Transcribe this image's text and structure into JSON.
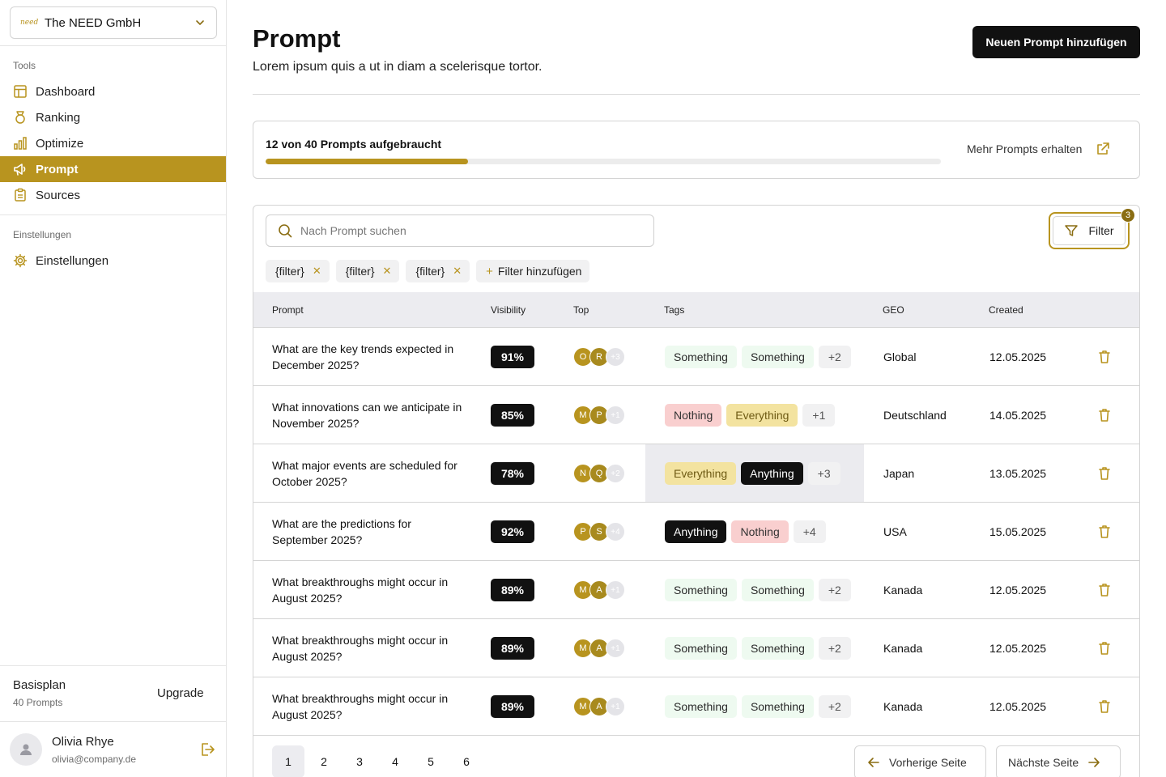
{
  "org": {
    "logo": "need",
    "name": "The NEED GmbH"
  },
  "sidebar": {
    "section_tools": "Tools",
    "items": [
      {
        "label": "Dashboard",
        "icon": "layout-icon"
      },
      {
        "label": "Ranking",
        "icon": "medal-icon"
      },
      {
        "label": "Optimize",
        "icon": "bar-chart-icon"
      },
      {
        "label": "Prompt",
        "icon": "megaphone-icon",
        "active": true
      },
      {
        "label": "Sources",
        "icon": "clipboard-icon"
      }
    ],
    "section_settings": "Einstellungen",
    "settings_item": {
      "label": "Einstellungen",
      "icon": "gear-icon"
    },
    "plan": {
      "name": "Basisplan",
      "sub": "40 Prompts",
      "upgrade_label": "Upgrade"
    },
    "user": {
      "name": "Olivia Rhye",
      "email": "olivia@company.de"
    }
  },
  "header": {
    "title": "Prompt",
    "subtitle": "Lorem ipsum quis a ut in diam a scelerisque tortor.",
    "add_button": "Neuen Prompt hinzufügen"
  },
  "usage": {
    "label": "12 von 40 Prompts aufgebraucht",
    "used": 12,
    "total": 40,
    "link_label": "Mehr Prompts erhalten"
  },
  "toolbar": {
    "search_placeholder": "Nach Prompt suchen",
    "filter_label": "Filter",
    "filter_count": "3",
    "chips": [
      "{filter}",
      "{filter}",
      "{filter}"
    ],
    "add_filter_label": "Filter hinzufügen"
  },
  "table": {
    "columns": [
      "Prompt",
      "Visibility",
      "Top",
      "Tags",
      "GEO",
      "Created"
    ],
    "rows": [
      {
        "prompt": "What are the key trends expected in December 2025?",
        "visibility": "91%",
        "avatars": [
          "O",
          "R"
        ],
        "avatar_more": "+3",
        "tags": [
          {
            "label": "Something",
            "style": "green"
          },
          {
            "label": "Something",
            "style": "green"
          }
        ],
        "tag_more": "+2",
        "geo": "Global",
        "created": "12.05.2025"
      },
      {
        "prompt": "What innovations can we anticipate in November 2025?",
        "visibility": "85%",
        "avatars": [
          "M",
          "P"
        ],
        "avatar_more": "+1",
        "tags": [
          {
            "label": "Nothing",
            "style": "red"
          },
          {
            "label": "Everything",
            "style": "yellow"
          }
        ],
        "tag_more": "+1",
        "geo": "Deutschland",
        "created": "14.05.2025"
      },
      {
        "prompt": "What major events are scheduled for October 2025?",
        "visibility": "78%",
        "avatars": [
          "N",
          "Q"
        ],
        "avatar_more": "+2",
        "tags": [
          {
            "label": "Everything",
            "style": "yellow"
          },
          {
            "label": "Anything",
            "style": "dark"
          }
        ],
        "tag_more": "+3",
        "geo": "Japan",
        "created": "13.05.2025",
        "hover_tags": true
      },
      {
        "prompt": "What are the predictions for September 2025?",
        "visibility": "92%",
        "avatars": [
          "P",
          "S"
        ],
        "avatar_more": "+4",
        "tags": [
          {
            "label": "Anything",
            "style": "dark"
          },
          {
            "label": "Nothing",
            "style": "red"
          }
        ],
        "tag_more": "+4",
        "geo": "USA",
        "created": "15.05.2025"
      },
      {
        "prompt": "What breakthroughs might occur in August 2025?",
        "visibility": "89%",
        "avatars": [
          "M",
          "A"
        ],
        "avatar_more": "+1",
        "tags": [
          {
            "label": "Something",
            "style": "green"
          },
          {
            "label": "Something",
            "style": "green"
          }
        ],
        "tag_more": "+2",
        "geo": "Kanada",
        "created": "12.05.2025"
      },
      {
        "prompt": "What breakthroughs might occur in August 2025?",
        "visibility": "89%",
        "avatars": [
          "M",
          "A"
        ],
        "avatar_more": "+1",
        "tags": [
          {
            "label": "Something",
            "style": "green"
          },
          {
            "label": "Something",
            "style": "green"
          }
        ],
        "tag_more": "+2",
        "geo": "Kanada",
        "created": "12.05.2025"
      },
      {
        "prompt": "What breakthroughs might occur in August 2025?",
        "visibility": "89%",
        "avatars": [
          "M",
          "A"
        ],
        "avatar_more": "+1",
        "tags": [
          {
            "label": "Something",
            "style": "green"
          },
          {
            "label": "Something",
            "style": "green"
          }
        ],
        "tag_more": "+2",
        "geo": "Kanada",
        "created": "12.05.2025"
      }
    ]
  },
  "pagination": {
    "pages": [
      "1",
      "2",
      "3",
      "4",
      "5",
      "6"
    ],
    "current": "1",
    "prev_label": "Vorherige Seite",
    "next_label": "Nächste Seite"
  },
  "colors": {
    "accent": "#b8941f",
    "dark": "#111111"
  }
}
